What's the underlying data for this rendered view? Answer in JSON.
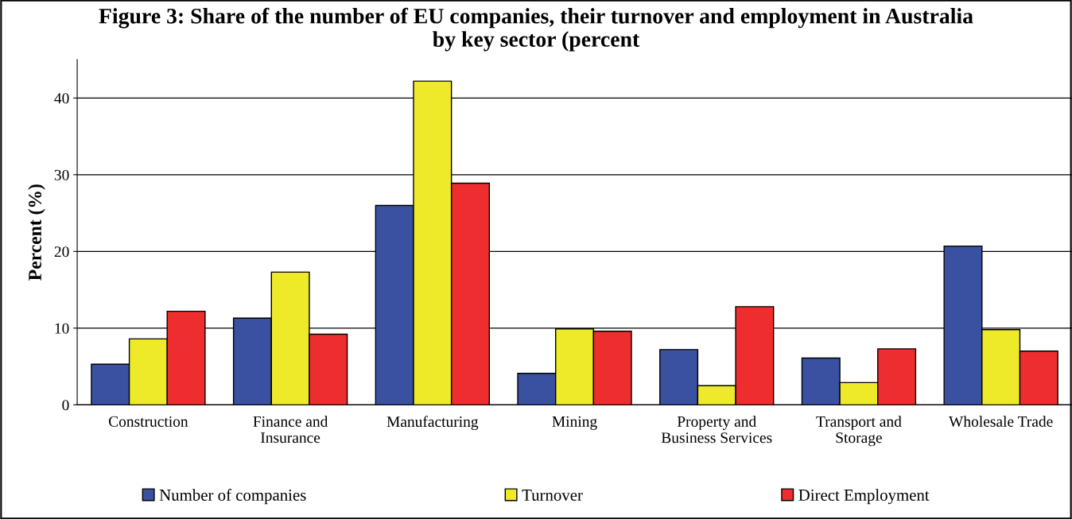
{
  "chart_data": {
    "type": "bar",
    "title": "Figure 3: Share of the number of EU companies, their turnover and employment in Australia\nby key sector (percent",
    "ylabel": "Percent (%)",
    "categories": [
      "Construction",
      "Finance and\nInsurance",
      "Manufacturing",
      "Mining",
      "Property and\nBusiness Services",
      "Transport and\nStorage",
      "Wholesale Trade"
    ],
    "series": [
      {
        "name": "Number of companies",
        "color": "#3a50a0",
        "values": [
          5.3,
          11.3,
          26.0,
          4.1,
          7.2,
          6.1,
          20.7
        ]
      },
      {
        "name": "Turnover",
        "color": "#eeea2a",
        "values": [
          8.6,
          17.3,
          42.2,
          9.9,
          2.5,
          2.9,
          9.8
        ]
      },
      {
        "name": "Direct Employment",
        "color": "#ee2e2e",
        "values": [
          12.2,
          9.2,
          28.9,
          9.6,
          12.8,
          7.3,
          7.0
        ]
      }
    ],
    "ylim": [
      0,
      45
    ],
    "yticks": [
      0,
      10,
      20,
      30,
      40
    ],
    "grid": "y",
    "legend": "bottom"
  }
}
